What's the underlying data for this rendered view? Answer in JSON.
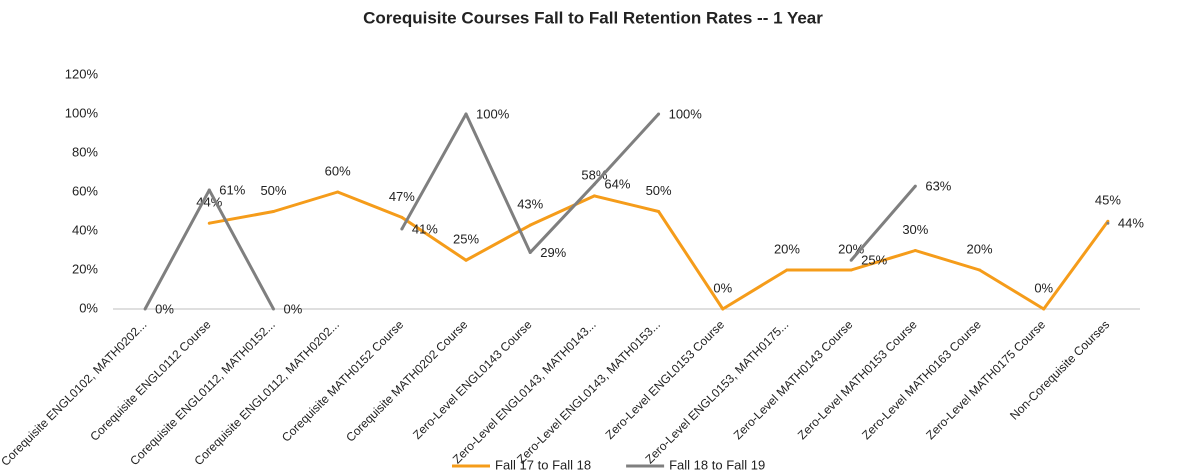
{
  "chart_data": {
    "type": "line",
    "title": "Corequisite Courses Fall to Fall Retention Rates -- 1 Year",
    "categories": [
      "Corequisite ENGL0102, MATH0202...",
      "Corequisite ENGL0112 Course",
      "Corequisite ENGL0112, MATH0152...",
      "Corequisite ENGL0112, MATH0202...",
      "Corequisite MATH0152 Course",
      "Corequisite MATH0202 Course",
      "Zero-Level ENGL0143 Course",
      "Zero-Level ENGL0143, MATH0143...",
      "Zero-Level ENGL0143, MATH0153...",
      "Zero-Level ENGL0153 Course",
      "Zero-Level ENGL0153, MATH0175...",
      "Zero-Level MATH0143 Course",
      "Zero-Level MATH0153 Course",
      "Zero-Level MATH0163 Course",
      "Zero-Level MATH0175 Course",
      "Non-Corequisite Courses"
    ],
    "series": [
      {
        "name": "Fall 17 to Fall 18",
        "color": "#f59c1a",
        "values": [
          null,
          44,
          50,
          60,
          47,
          25,
          43,
          58,
          50,
          0,
          20,
          20,
          30,
          20,
          0,
          45
        ],
        "value_labels": [
          null,
          "44%",
          "50%",
          "60%",
          "47%",
          "25%",
          "43%",
          "58%",
          "50%",
          "0%",
          "20%",
          "20%",
          "30%",
          "20%",
          "0%",
          "45%"
        ]
      },
      {
        "name": "Fall 18 to Fall 19",
        "color": "#7f7f7f",
        "values": [
          0,
          61,
          0,
          null,
          41,
          100,
          29,
          64,
          100,
          null,
          null,
          25,
          63,
          null,
          null,
          44
        ],
        "value_labels": [
          "0%",
          "61%",
          "0%",
          null,
          "41%",
          "100%",
          "29%",
          "64%",
          "100%",
          null,
          null,
          "25%",
          "63%",
          null,
          null,
          "44%"
        ]
      }
    ],
    "ylim": [
      0,
      120
    ],
    "yticks": [
      {
        "value": 0,
        "label": "0%"
      },
      {
        "value": 20,
        "label": "20%"
      },
      {
        "value": 40,
        "label": "40%"
      },
      {
        "value": 60,
        "label": "60%"
      },
      {
        "value": 80,
        "label": "80%"
      },
      {
        "value": 100,
        "label": "100%"
      },
      {
        "value": 120,
        "label": "120%"
      }
    ],
    "grid": false,
    "legend": "bottom"
  }
}
